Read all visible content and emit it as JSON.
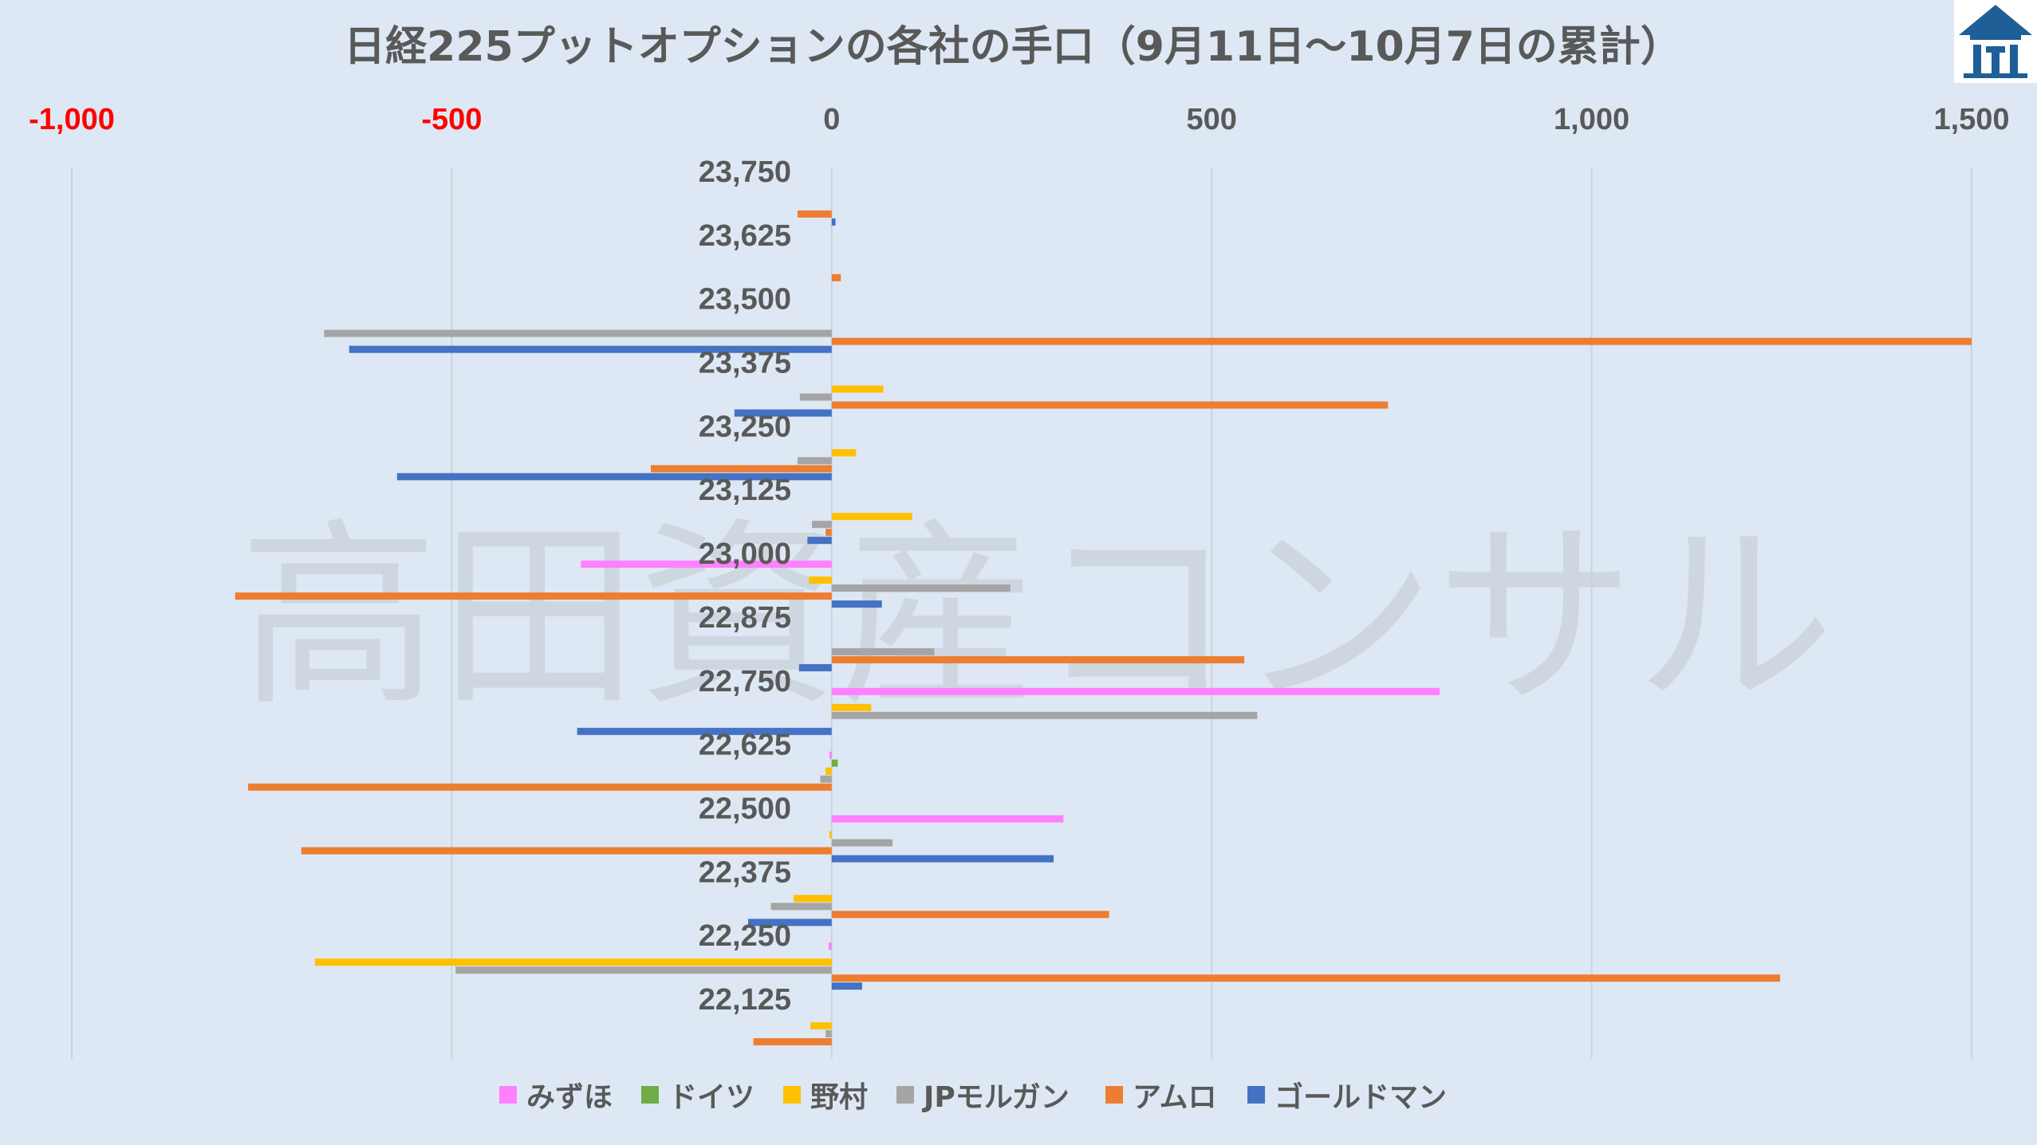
{
  "watermark": "高田資産コンサル",
  "chart_data": {
    "type": "bar",
    "orientation": "horizontal",
    "title": "日経225プットオプションの各社の手口（9月11日〜10月7日の累計）",
    "xlim": [
      -1000,
      1500
    ],
    "xticks": [
      -1000,
      -500,
      0,
      500,
      1000,
      1500
    ],
    "xtick_labels": [
      "-1,000",
      "-500",
      "0",
      "500",
      "1,000",
      "1,500"
    ],
    "negative_tick_color": "#ff0000",
    "positive_tick_color": "#595959",
    "grid": true,
    "legend_position": "bottom",
    "categories": [
      "23,750",
      "23,625",
      "23,500",
      "23,375",
      "23,250",
      "23,125",
      "23,000",
      "22,875",
      "22,750",
      "22,625",
      "22,500",
      "22,375",
      "22,250",
      "22,125"
    ],
    "series": [
      {
        "name": "みずほ",
        "color": "#ff80ff",
        "values": [
          0,
          0,
          0,
          0,
          0,
          0,
          -330,
          0,
          800,
          -3,
          305,
          0,
          -4,
          0
        ]
      },
      {
        "name": "ドイツ",
        "color": "#70ad47",
        "values": [
          0,
          0,
          0,
          0,
          0,
          0,
          0,
          0,
          0,
          8,
          0,
          0,
          0,
          0
        ]
      },
      {
        "name": "野村",
        "color": "#ffc000",
        "values": [
          0,
          0,
          0,
          68,
          32,
          106,
          -30,
          0,
          52,
          -8,
          -3,
          -50,
          -680,
          -28
        ]
      },
      {
        "name": "JPモルガン",
        "color": "#a5a5a5",
        "values": [
          0,
          0,
          -668,
          -42,
          -45,
          -26,
          235,
          135,
          560,
          -15,
          80,
          -80,
          -495,
          -8
        ]
      },
      {
        "name": "アムロ",
        "color": "#ed7d31",
        "values": [
          -45,
          12,
          1500,
          732,
          -238,
          -8,
          -785,
          543,
          0,
          -768,
          -698,
          365,
          1248,
          -103
        ]
      },
      {
        "name": "ゴールドマン",
        "color": "#4472c4",
        "values": [
          5,
          0,
          -635,
          -128,
          -572,
          -32,
          66,
          -43,
          -335,
          0,
          292,
          -110,
          40,
          0
        ]
      }
    ]
  }
}
